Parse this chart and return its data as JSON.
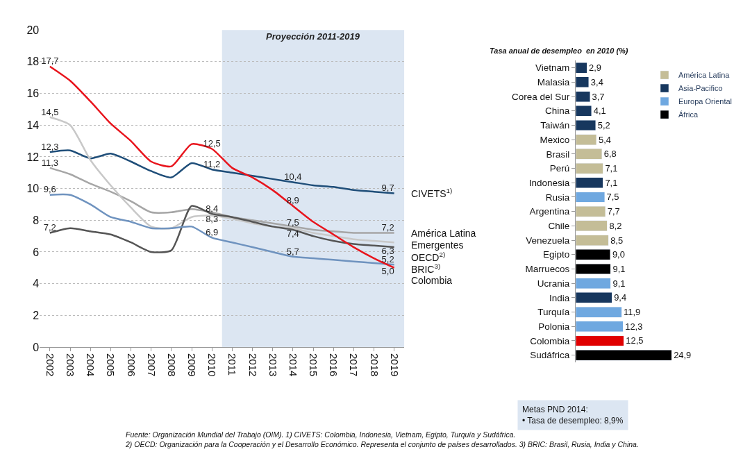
{
  "chart_data": [
    {
      "type": "line",
      "x": [
        2002,
        2003,
        2004,
        2005,
        2006,
        2007,
        2008,
        2009,
        2010,
        2011,
        2012,
        2013,
        2014,
        2015,
        2016,
        2017,
        2018,
        2019
      ],
      "xlim": [
        2001.5,
        2019.5
      ],
      "xticks": [
        2002,
        2003,
        2004,
        2005,
        2006,
        2007,
        2008,
        2009,
        2010,
        2011,
        2012,
        2013,
        2014,
        2015,
        2016,
        2017,
        2018,
        2019
      ],
      "ylim": [
        0,
        20
      ],
      "yticks": [
        0,
        2,
        4,
        6,
        8,
        10,
        12,
        14,
        16,
        18,
        20
      ],
      "grid": "y",
      "legend": false,
      "marker": "none",
      "line_style": "solid",
      "bands": [
        {
          "axis": "x",
          "from": 2010.5,
          "to": 2019.5,
          "label": "Proyección 2011-2019",
          "color": "#dce6f2"
        }
      ],
      "series": [
        {
          "name": "CIVETS$^{1)}$",
          "color": "#1f4e79",
          "values": [
            12.3,
            12.4,
            11.9,
            12.2,
            11.7,
            11.1,
            10.7,
            11.6,
            11.2,
            11.0,
            10.8,
            10.6,
            10.4,
            10.2,
            10.1,
            9.9,
            9.8,
            9.7
          ],
          "value_labels": [
            "12,3",
            null,
            null,
            null,
            null,
            null,
            null,
            null,
            "11,2",
            null,
            null,
            null,
            "10,4",
            null,
            null,
            null,
            null,
            "9,7"
          ]
        },
        {
          "name": "América Latina",
          "color": "#a6a6a6",
          "values": [
            11.3,
            10.9,
            10.3,
            9.8,
            9.2,
            8.5,
            8.5,
            8.7,
            8.5,
            8.2,
            8.0,
            7.8,
            7.6,
            7.4,
            7.3,
            7.2,
            7.2,
            7.2
          ],
          "value_labels": [
            "11,3",
            null,
            null,
            null,
            null,
            null,
            null,
            null,
            null,
            null,
            null,
            null,
            null,
            null,
            null,
            null,
            null,
            "7,2"
          ]
        },
        {
          "name": "Emergentes",
          "color": "#c8c8c8",
          "values": [
            14.5,
            14.0,
            11.8,
            10.2,
            8.8,
            7.6,
            7.5,
            8.2,
            8.3,
            8.1,
            7.8,
            7.6,
            7.5,
            7.2,
            7.0,
            6.8,
            6.7,
            6.6
          ],
          "value_labels": [
            "14,5",
            null,
            null,
            null,
            null,
            null,
            null,
            null,
            "8,3",
            null,
            null,
            null,
            "7,5",
            null,
            null,
            null,
            null,
            null
          ]
        },
        {
          "name": "OECD$^{2)}$",
          "color": "#555555",
          "values": [
            7.2,
            7.5,
            7.3,
            7.1,
            6.6,
            6.0,
            6.1,
            8.9,
            8.4,
            8.2,
            7.9,
            7.6,
            7.4,
            7.0,
            6.7,
            6.5,
            6.4,
            6.3
          ],
          "value_labels": [
            "7,2",
            null,
            null,
            null,
            null,
            null,
            null,
            null,
            "8,4",
            null,
            null,
            null,
            "7,4",
            null,
            null,
            null,
            null,
            "6,3"
          ]
        },
        {
          "name": "BRIC$^{3)}$",
          "color": "#6f93bf",
          "values": [
            9.6,
            9.6,
            9.0,
            8.2,
            7.9,
            7.5,
            7.5,
            7.6,
            6.9,
            6.6,
            6.3,
            6.0,
            5.7,
            5.6,
            5.5,
            5.4,
            5.3,
            5.2
          ],
          "value_labels": [
            "9,6",
            null,
            null,
            null,
            null,
            null,
            null,
            null,
            "6,9",
            null,
            null,
            null,
            "5,7",
            null,
            null,
            null,
            null,
            "5,2"
          ]
        },
        {
          "name": "Colombia",
          "color": "#e8141c",
          "values": [
            17.7,
            16.8,
            15.5,
            14.1,
            13.0,
            11.7,
            11.4,
            12.8,
            12.5,
            11.3,
            10.7,
            9.9,
            8.9,
            7.9,
            7.1,
            6.3,
            5.6,
            5.0
          ],
          "value_labels": [
            "17,7",
            null,
            null,
            null,
            null,
            null,
            null,
            null,
            "12,5",
            null,
            null,
            null,
            "8,9",
            null,
            null,
            null,
            null,
            "5,0"
          ]
        }
      ],
      "annotations": [
        "Fuente: Organización Mundial del Trabajo (OIM). 1) CIVETS: Colombia, Indonesia, Vietnam, Egipto, Turquía y Sudáfrica.\n2) OECD: Organización para la Cooperación y el Desarrollo Económico. Representa el conjunto de países desarrollados. 3) BRIC: Brasil, Rusia, India y China."
      ]
    },
    {
      "type": "bar",
      "orientation": "horizontal",
      "stacked": true,
      "legend": "top right",
      "title": "Tasa anual de desempleo  en 2010 (%)",
      "categories": [
        "Vietnam",
        "Malasia",
        "Corea del Sur",
        "China",
        "Taiwán",
        "Mexico",
        "Brasil",
        "Perú",
        "Indonesia",
        "Rusia",
        "Argentina",
        "Chile",
        "Venezuela",
        "Egipto",
        "Marruecos",
        "Ucrania",
        "India",
        "Turquía",
        "Polonia",
        "Colombia",
        "Sudáfrica"
      ],
      "series": [
        {
          "name": "América Latina",
          "color": "#c4bd97",
          "values": [
            null,
            null,
            null,
            null,
            null,
            5.4,
            6.8,
            7.1,
            null,
            null,
            7.7,
            8.2,
            8.5,
            null,
            null,
            null,
            null,
            null,
            null,
            null,
            null
          ],
          "value_labels": [
            null,
            null,
            null,
            null,
            null,
            "5,4",
            "6,8",
            "7,1",
            null,
            null,
            "7,7",
            "8,2",
            "8,5",
            null,
            null,
            null,
            null,
            null,
            null,
            null,
            null
          ]
        },
        {
          "name": "Asia-Pacifico",
          "color": "#17375e",
          "values": [
            2.9,
            3.4,
            3.7,
            4.1,
            5.2,
            null,
            null,
            null,
            7.1,
            null,
            null,
            null,
            null,
            null,
            null,
            null,
            9.4,
            null,
            null,
            null,
            null
          ],
          "value_labels": [
            "2,9",
            "3,4",
            "3,7",
            "4,1",
            "5,2",
            null,
            null,
            null,
            "7,1",
            null,
            null,
            null,
            null,
            null,
            null,
            null,
            "9,4",
            null,
            null,
            null,
            null
          ]
        },
        {
          "name": "Europa Oriental",
          "color": "#6fa8e0",
          "values": [
            null,
            null,
            null,
            null,
            null,
            null,
            null,
            null,
            null,
            7.5,
            null,
            null,
            null,
            null,
            null,
            9.1,
            null,
            11.9,
            12.3,
            null,
            null
          ],
          "value_labels": [
            null,
            null,
            null,
            null,
            null,
            null,
            null,
            null,
            null,
            "7,5",
            null,
            null,
            null,
            null,
            null,
            "9,1",
            null,
            "11,9",
            "12,3",
            null,
            null
          ]
        },
        {
          "name": "África",
          "color": "#000000",
          "values": [
            null,
            null,
            null,
            null,
            null,
            null,
            null,
            null,
            null,
            null,
            null,
            null,
            null,
            9.0,
            9.1,
            null,
            null,
            null,
            null,
            null,
            24.9
          ],
          "value_labels": [
            null,
            null,
            null,
            null,
            null,
            null,
            null,
            null,
            null,
            null,
            null,
            null,
            null,
            "9,0",
            "9,1",
            null,
            null,
            null,
            null,
            null,
            "24,9"
          ]
        },
        {
          "color": "#e00000",
          "values": [
            null,
            null,
            null,
            null,
            null,
            null,
            null,
            null,
            null,
            null,
            null,
            null,
            null,
            null,
            null,
            null,
            null,
            null,
            null,
            12.5,
            null
          ],
          "value_labels": [
            null,
            null,
            null,
            null,
            null,
            null,
            null,
            null,
            null,
            null,
            null,
            null,
            null,
            null,
            null,
            null,
            null,
            null,
            null,
            "12,5",
            null
          ]
        }
      ],
      "annotations": [
        "Metas PND 2014:\n• Tasa de desempleo: 8,9%"
      ]
    }
  ]
}
